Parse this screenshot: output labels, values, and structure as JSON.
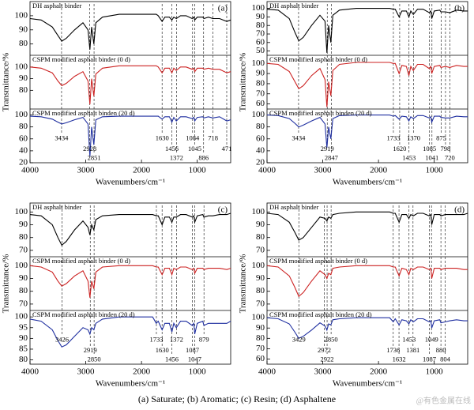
{
  "chart_data": [
    {
      "type": "line",
      "label": "(a)",
      "xlabel": "Wavenumbers/cm⁻¹",
      "ylabel": "Transmittance/%",
      "xlim": [
        4000,
        400
      ],
      "xticks": [
        4000,
        3000,
        2000,
        1000
      ],
      "x": [
        4000,
        3800,
        3600,
        3500,
        3430,
        3350,
        3200,
        3050,
        2960,
        2925,
        2895,
        2855,
        2820,
        2700,
        2400,
        2000,
        1800,
        1735,
        1700,
        1630,
        1580,
        1500,
        1455,
        1420,
        1375,
        1300,
        1200,
        1090,
        1060,
        1045,
        1000,
        900,
        880,
        800,
        720,
        600,
        470,
        400
      ],
      "peaks": [
        3434,
        2928,
        2851,
        1630,
        1456,
        1372,
        1084,
        1045,
        886,
        718,
        471
      ],
      "series": [
        {
          "name": "DH asphalt binder",
          "color": "#000000",
          "ylim": [
            72,
            110
          ],
          "yticks": [
            80,
            90,
            100
          ],
          "values": [
            98,
            97,
            92,
            86,
            82,
            84,
            90,
            95,
            90,
            76,
            92,
            80,
            95,
            99,
            101,
            101,
            101,
            101,
            100,
            96,
            99,
            99,
            97,
            99,
            98,
            100,
            100,
            98,
            99,
            97,
            99,
            99,
            98,
            99,
            98,
            98,
            96,
            97
          ]
        },
        {
          "name": "CSPM modified asphalt binder (0 d)",
          "color": "#cc2222",
          "ylim": [
            64,
            110
          ],
          "yticks": [
            80,
            90,
            100
          ],
          "values": [
            100,
            99,
            95,
            88,
            84,
            86,
            92,
            96,
            88,
            68,
            90,
            75,
            94,
            99,
            101,
            101,
            101,
            101,
            100,
            95,
            99,
            99,
            95,
            99,
            97,
            100,
            100,
            98,
            99,
            96,
            99,
            99,
            98,
            99,
            98,
            98,
            95,
            96
          ]
        },
        {
          "name": "CSPM modified asphalt binden (20 d)",
          "color": "#1f2fa0",
          "ylim": [
            20,
            110
          ],
          "yticks": [
            20,
            40,
            60,
            80,
            100
          ],
          "values": [
            98,
            97,
            93,
            88,
            85,
            87,
            92,
            96,
            85,
            30,
            80,
            50,
            92,
            97,
            98,
            98,
            98,
            98,
            98,
            93,
            97,
            97,
            88,
            96,
            90,
            97,
            97,
            94,
            96,
            90,
            96,
            97,
            95,
            97,
            95,
            97,
            90,
            92
          ]
        }
      ]
    },
    {
      "type": "line",
      "label": "(b)",
      "xlabel": "Wavenumbers/cm⁻¹",
      "ylabel": "Transmittance/%",
      "xlim": [
        4000,
        400
      ],
      "xticks": [
        4000,
        3000,
        2000,
        1000
      ],
      "x": [
        4000,
        3800,
        3600,
        3500,
        3430,
        3350,
        3200,
        3050,
        2960,
        2925,
        2895,
        2855,
        2820,
        2700,
        2400,
        2000,
        1800,
        1735,
        1700,
        1630,
        1580,
        1500,
        1455,
        1420,
        1375,
        1300,
        1200,
        1090,
        1060,
        1045,
        1000,
        900,
        880,
        800,
        720,
        600,
        470,
        400
      ],
      "peaks": [
        3434,
        2919,
        2847,
        1733,
        1620,
        1453,
        1370,
        1085,
        1041,
        875,
        798,
        720
      ],
      "series": [
        {
          "name": "DH asphalt binder",
          "color": "#000000",
          "ylim": [
            45,
            108
          ],
          "yticks": [
            50,
            60,
            70,
            80,
            90,
            100
          ],
          "values": [
            99,
            98,
            88,
            72,
            62,
            66,
            80,
            92,
            85,
            48,
            80,
            60,
            92,
            98,
            100,
            100,
            100,
            99,
            99,
            90,
            97,
            97,
            90,
            97,
            93,
            99,
            99,
            95,
            97,
            88,
            97,
            98,
            96,
            96,
            95,
            98,
            97,
            97
          ]
        },
        {
          "name": "CSPM modified asphalt binder (0 d)",
          "color": "#cc2222",
          "ylim": [
            55,
            108
          ],
          "yticks": [
            60,
            70,
            80,
            90,
            100
          ],
          "values": [
            100,
            99,
            92,
            82,
            75,
            78,
            88,
            95,
            84,
            57,
            82,
            68,
            93,
            99,
            101,
            101,
            101,
            100,
            100,
            90,
            98,
            97,
            88,
            97,
            93,
            99,
            99,
            95,
            97,
            90,
            97,
            98,
            96,
            97,
            96,
            98,
            97,
            97
          ]
        },
        {
          "name": "CSPM modified asphalt binden (20 d)",
          "color": "#1f2fa0",
          "ylim": [
            20,
            110
          ],
          "yticks": [
            20,
            40,
            60,
            80,
            100
          ],
          "values": [
            100,
            99,
            94,
            86,
            80,
            83,
            90,
            96,
            85,
            45,
            80,
            60,
            94,
            99,
            100,
            100,
            100,
            98,
            99,
            93,
            98,
            97,
            90,
            97,
            94,
            99,
            99,
            95,
            97,
            88,
            98,
            98,
            96,
            95,
            95,
            98,
            97,
            97
          ]
        }
      ]
    },
    {
      "type": "line",
      "label": "(c)",
      "xlabel": "Wavenumbers/cm⁻¹",
      "ylabel": "Transmittance/%",
      "xlim": [
        4000,
        400
      ],
      "xticks": [
        4000,
        3000,
        2000,
        1000
      ],
      "x": [
        4000,
        3800,
        3600,
        3500,
        3430,
        3350,
        3200,
        3050,
        2960,
        2925,
        2895,
        2855,
        2820,
        2700,
        2400,
        2000,
        1800,
        1735,
        1700,
        1630,
        1580,
        1500,
        1455,
        1420,
        1375,
        1300,
        1200,
        1090,
        1060,
        1045,
        1000,
        900,
        880,
        800,
        720,
        600,
        470,
        400
      ],
      "peaks": [
        3426,
        2919,
        2850,
        1733,
        1630,
        1456,
        1372,
        1087,
        1047,
        879
      ],
      "series": [
        {
          "name": "DH asphalt binder",
          "color": "#000000",
          "ylim": [
            65,
            107
          ],
          "yticks": [
            70,
            80,
            90,
            100
          ],
          "values": [
            98,
            97,
            90,
            80,
            74,
            77,
            86,
            93,
            88,
            82,
            90,
            86,
            94,
            97,
            98,
            98,
            98,
            97,
            97,
            90,
            96,
            96,
            92,
            96,
            96,
            98,
            98,
            96,
            97,
            92,
            97,
            98,
            96,
            97,
            97,
            98,
            98,
            99
          ]
        },
        {
          "name": "CSPM modified asphalt binder (0 d)",
          "color": "#cc2222",
          "ylim": [
            65,
            107
          ],
          "yticks": [
            70,
            80,
            90,
            100
          ],
          "values": [
            100,
            99,
            95,
            88,
            84,
            86,
            92,
            96,
            88,
            75,
            88,
            82,
            95,
            99,
            100,
            100,
            100,
            99,
            99,
            93,
            98,
            98,
            93,
            98,
            97,
            99,
            99,
            97,
            98,
            94,
            98,
            98,
            97,
            98,
            98,
            98,
            97,
            98
          ]
        },
        {
          "name": "CSPM modified asphalt binden (20 d)",
          "color": "#1f2fa0",
          "ylim": [
            78,
            103
          ],
          "yticks": [
            80,
            85,
            90,
            95,
            100
          ],
          "values": [
            99,
            98,
            94,
            89,
            86,
            87,
            91,
            95,
            94,
            92,
            95,
            94,
            97,
            99,
            100,
            100,
            100,
            97,
            98,
            94,
            97,
            97,
            93,
            97,
            95,
            98,
            98,
            96,
            97,
            92,
            97,
            98,
            96,
            97,
            97,
            97,
            97,
            98
          ]
        }
      ]
    },
    {
      "type": "line",
      "label": "(d)",
      "xlabel": "Wavenumbers/cm⁻¹",
      "ylabel": "Transmittance/%",
      "xlim": [
        4000,
        400
      ],
      "xticks": [
        4000,
        3000,
        2000,
        1000
      ],
      "x": [
        4000,
        3800,
        3600,
        3500,
        3430,
        3350,
        3200,
        3050,
        2960,
        2925,
        2895,
        2855,
        2820,
        2700,
        2400,
        2000,
        1800,
        1735,
        1700,
        1630,
        1580,
        1500,
        1455,
        1420,
        1375,
        1300,
        1200,
        1090,
        1060,
        1045,
        1000,
        900,
        880,
        800,
        720,
        600,
        470,
        400
      ],
      "peaks": [
        3429,
        2972,
        2922,
        2850,
        1736,
        1632,
        1453,
        1381,
        1087,
        1049,
        880,
        804
      ],
      "series": [
        {
          "name": "DH asphalt binder",
          "color": "#000000",
          "ylim": [
            65,
            107
          ],
          "yticks": [
            70,
            80,
            90,
            100
          ],
          "values": [
            99,
            98,
            92,
            84,
            78,
            80,
            88,
            96,
            95,
            93,
            96,
            95,
            98,
            99,
            100,
            100,
            100,
            99,
            99,
            92,
            98,
            98,
            95,
            98,
            97,
            99,
            99,
            97,
            98,
            90,
            98,
            98,
            97,
            98,
            98,
            98,
            98,
            99
          ]
        },
        {
          "name": "CSPM modified asphalt binder (0 d)",
          "color": "#cc2222",
          "ylim": [
            65,
            107
          ],
          "yticks": [
            70,
            80,
            90,
            100
          ],
          "values": [
            100,
            99,
            92,
            83,
            76,
            79,
            88,
            96,
            93,
            90,
            94,
            93,
            98,
            99,
            100,
            100,
            100,
            99,
            99,
            92,
            98,
            97,
            93,
            98,
            97,
            99,
            99,
            97,
            98,
            90,
            98,
            98,
            97,
            98,
            98,
            98,
            97,
            97
          ]
        },
        {
          "name": "CSPM modified asphalt binden (20 d)",
          "color": "#1f2fa0",
          "ylim": [
            55,
            107
          ],
          "yticks": [
            60,
            70,
            80,
            90,
            100
          ],
          "values": [
            100,
            99,
            94,
            86,
            80,
            82,
            88,
            95,
            92,
            88,
            94,
            93,
            98,
            99,
            100,
            100,
            100,
            96,
            99,
            93,
            98,
            97,
            94,
            98,
            96,
            99,
            99,
            96,
            97,
            90,
            97,
            98,
            95,
            96,
            97,
            98,
            97,
            97
          ]
        }
      ]
    }
  ],
  "caption": "(a)  Saturate; (b) Aromatic; (c) Resin; (d) Asphaltene",
  "watermark": "@有色金属在线"
}
